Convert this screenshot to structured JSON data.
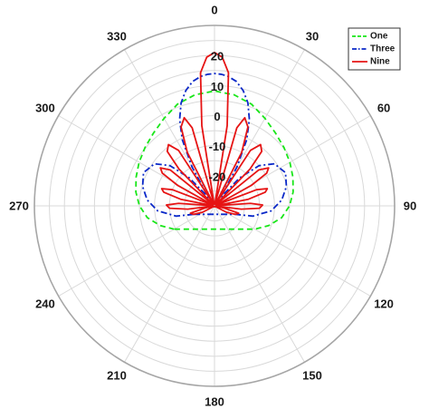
{
  "chart_data": {
    "type": "polar",
    "theta_zero": "top",
    "theta_direction": "clockwise",
    "theta_ticks": [
      0,
      30,
      60,
      90,
      120,
      150,
      180,
      210,
      240,
      270,
      300,
      330
    ],
    "theta_tick_labels": [
      "0",
      "30",
      "60",
      "90",
      "120",
      "150",
      "180",
      "210",
      "240",
      "270",
      "300",
      "330"
    ],
    "r_ticks": [
      -20,
      -10,
      0,
      10,
      20
    ],
    "r_tick_labels": [
      "-20",
      "-10",
      "0",
      "10",
      "20"
    ],
    "r_lim": [
      -30,
      30
    ],
    "r_ticks_label_angle": 0,
    "grid": true,
    "legend_position": "top-right",
    "series": [
      {
        "name": "One",
        "color": "#19e619",
        "style": "dashed",
        "theta": [
          -120,
          -110,
          -100,
          -90,
          -80,
          -70,
          -60,
          -50,
          -40,
          -30,
          -20,
          -10,
          0,
          10,
          20,
          30,
          40,
          50,
          60,
          70,
          80,
          90,
          100,
          110,
          120
        ],
        "r": [
          -14.5,
          -10.8,
          -7.3,
          -5.0,
          -3.4,
          -2.2,
          -1.0,
          0.2,
          1.6,
          3.6,
          6.0,
          7.5,
          8.2,
          7.5,
          6.0,
          3.6,
          1.6,
          0.2,
          -1.0,
          -2.2,
          -3.4,
          -5.0,
          -7.3,
          -10.8,
          -14.5
        ]
      },
      {
        "name": "Three",
        "color": "#0a28c8",
        "style": "dashdot",
        "theta": [
          -112,
          -105,
          -95,
          -85,
          -75,
          -65,
          -55,
          -48,
          -42,
          -36,
          -30,
          -26,
          -22,
          -18,
          -14,
          -10,
          -6,
          -3,
          0,
          3,
          6,
          10,
          14,
          18,
          22,
          26,
          30,
          36,
          42,
          48,
          55,
          65,
          75,
          85,
          95,
          105,
          112
        ],
        "r": [
          -22.5,
          -16.8,
          -11.0,
          -7.5,
          -5.2,
          -3.9,
          -5.6,
          -10.0,
          -17.5,
          -26.5,
          -15.0,
          -5.5,
          1.0,
          6.0,
          9.5,
          12.0,
          13.3,
          13.8,
          14.0,
          13.8,
          13.3,
          12.0,
          9.5,
          6.0,
          1.0,
          -5.5,
          -15.0,
          -26.5,
          -17.5,
          -10.0,
          -5.6,
          -3.9,
          -5.2,
          -7.5,
          -11.0,
          -16.8,
          -22.5
        ]
      },
      {
        "name": "Nine",
        "color": "#e61414",
        "style": "solid",
        "theta": [
          -125,
          -118,
          -112,
          -107,
          -103,
          -100,
          -97,
          -93,
          -89,
          -86,
          -83,
          -79,
          -75,
          -72,
          -69,
          -65,
          -61,
          -58,
          -55,
          -51,
          -47,
          -44,
          -41,
          -37,
          -33,
          -30,
          -27,
          -23,
          -19,
          -16,
          -13,
          -9,
          -6,
          -3,
          0,
          3,
          6,
          9,
          13,
          16,
          19,
          23,
          27,
          30,
          33,
          37,
          41,
          44,
          47,
          51,
          55,
          58,
          61,
          65,
          69,
          72,
          75,
          79,
          83,
          86,
          89,
          93,
          97,
          100,
          103,
          107,
          112,
          118,
          125
        ],
        "r": [
          -29.5,
          -25.5,
          -22.5,
          -21.6,
          -26.5,
          -29.5,
          -21.0,
          -15.0,
          -14.0,
          -18.0,
          -29.5,
          -18.5,
          -12.5,
          -11.5,
          -15.0,
          -29.5,
          -16.0,
          -9.5,
          -8.0,
          -11.0,
          -29.5,
          -13.0,
          -6.0,
          -4.5,
          -8.0,
          -29.5,
          -10.0,
          -1.5,
          1.0,
          -3.0,
          -29.5,
          -3.0,
          14.5,
          19.5,
          21.0,
          19.5,
          14.5,
          -3.0,
          -29.5,
          -3.0,
          1.0,
          -1.5,
          -10.0,
          -29.5,
          -8.0,
          -4.5,
          -6.0,
          -13.0,
          -29.5,
          -11.0,
          -8.0,
          -9.5,
          -16.0,
          -29.5,
          -15.0,
          -11.5,
          -12.5,
          -18.5,
          -29.5,
          -18.0,
          -14.0,
          -15.0,
          -21.0,
          -29.5,
          -26.5,
          -21.6,
          -22.5,
          -25.5,
          -29.5
        ]
      }
    ]
  }
}
